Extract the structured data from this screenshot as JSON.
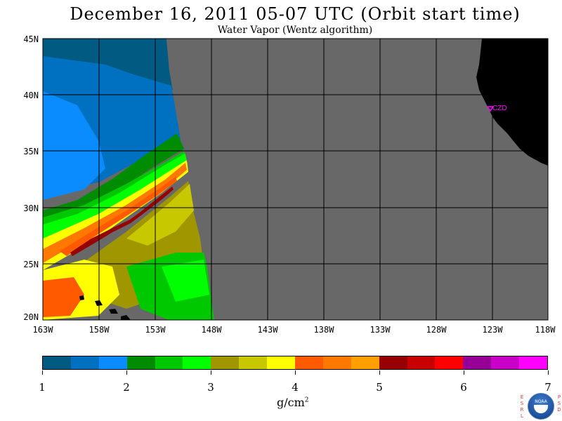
{
  "title": "December 16, 2011  05-07 UTC  (Orbit start time)",
  "subtitle": "Water Vapor (Wentz algorithm)",
  "map": {
    "lat_labels": [
      "45N",
      "40N",
      "35N",
      "30N",
      "25N",
      "20N"
    ],
    "lon_labels": [
      "163W",
      "158W",
      "153W",
      "148W",
      "143W",
      "138W",
      "133W",
      "128W",
      "123W",
      "118W"
    ],
    "station_label": "CZD",
    "colors": {
      "nodata": "#686868",
      "land": "#000000",
      "grid": "#000000",
      "station": "#ff00ff"
    }
  },
  "colorbar": {
    "labels": [
      "1",
      "2",
      "3",
      "4",
      "5",
      "6",
      "7"
    ],
    "colors": [
      "#005a82",
      "#0070c0",
      "#0a8cff",
      "#008c00",
      "#00c800",
      "#00ff00",
      "#a09600",
      "#c8c800",
      "#ffff00",
      "#ff5a00",
      "#ff7800",
      "#ffa000",
      "#960000",
      "#c80000",
      "#ff0000",
      "#960096",
      "#c800c8",
      "#ff00ff"
    ],
    "units": "g/cm",
    "units_sup": "2"
  },
  "logo": {
    "left_text": [
      "E",
      "S",
      "R",
      "L"
    ],
    "right_text": [
      "P",
      "S",
      "D"
    ],
    "center_text": "NOAA"
  }
}
